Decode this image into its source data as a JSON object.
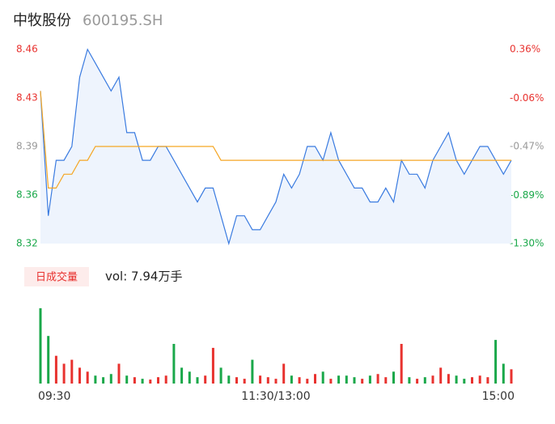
{
  "header": {
    "name": "中牧股份",
    "code": "600195.SH"
  },
  "chart_data": [
    {
      "type": "line",
      "xlim": [
        0,
        240
      ],
      "x": [
        0,
        4,
        8,
        12,
        16,
        20,
        24,
        28,
        32,
        36,
        40,
        44,
        48,
        52,
        56,
        60,
        64,
        68,
        72,
        76,
        80,
        84,
        88,
        92,
        96,
        100,
        104,
        108,
        112,
        116,
        120,
        124,
        128,
        132,
        136,
        140,
        144,
        148,
        152,
        156,
        160,
        164,
        168,
        172,
        176,
        180,
        184,
        188,
        192,
        196,
        200,
        204,
        208,
        212,
        216,
        220,
        224,
        228,
        232,
        236,
        240
      ],
      "xticks": [
        {
          "value": 0,
          "label": "09:30"
        },
        {
          "value": 120,
          "label": "11:30/13:00"
        },
        {
          "value": 240,
          "label": "15:00"
        }
      ],
      "ylim": [
        8.32,
        8.46
      ],
      "yticks": [
        {
          "value": 8.46,
          "label": "8.46"
        },
        {
          "value": 8.425,
          "label": "8.43"
        },
        {
          "value": 8.39,
          "label": "8.39"
        },
        {
          "value": 8.355,
          "label": "8.36"
        },
        {
          "value": 8.32,
          "label": "8.32"
        }
      ],
      "y2lim": [
        -1.3,
        0.36
      ],
      "y2ticks": [
        {
          "value": 0.36,
          "label": "0.36%"
        },
        {
          "value": -0.06,
          "label": "-0.06%"
        },
        {
          "value": -0.47,
          "label": "-0.47%"
        },
        {
          "value": -0.89,
          "label": "-0.89%"
        },
        {
          "value": -1.3,
          "label": "-1.30%"
        }
      ],
      "tick_colors": [
        "#e8322f",
        "#e8322f",
        "#999999",
        "#1aa84a",
        "#1aa84a"
      ],
      "series": [
        {
          "name": "price",
          "color": "#3a7be0",
          "area": "#eef4fd",
          "values": [
            8.43,
            8.34,
            8.38,
            8.38,
            8.39,
            8.44,
            8.46,
            8.45,
            8.44,
            8.43,
            8.44,
            8.4,
            8.4,
            8.38,
            8.38,
            8.39,
            8.39,
            8.38,
            8.37,
            8.36,
            8.35,
            8.36,
            8.36,
            8.34,
            8.32,
            8.34,
            8.34,
            8.33,
            8.33,
            8.34,
            8.35,
            8.37,
            8.36,
            8.37,
            8.39,
            8.39,
            8.38,
            8.4,
            8.38,
            8.37,
            8.36,
            8.36,
            8.35,
            8.35,
            8.36,
            8.35,
            8.38,
            8.37,
            8.37,
            8.36,
            8.38,
            8.39,
            8.4,
            8.38,
            8.37,
            8.38,
            8.39,
            8.39,
            8.38,
            8.37,
            8.38
          ]
        },
        {
          "name": "average",
          "color": "#f5a623",
          "values": [
            8.43,
            8.36,
            8.36,
            8.37,
            8.37,
            8.38,
            8.38,
            8.39,
            8.39,
            8.39,
            8.39,
            8.39,
            8.39,
            8.39,
            8.39,
            8.39,
            8.39,
            8.39,
            8.39,
            8.39,
            8.39,
            8.39,
            8.39,
            8.38,
            8.38,
            8.38,
            8.38,
            8.38,
            8.38,
            8.38,
            8.38,
            8.38,
            8.38,
            8.38,
            8.38,
            8.38,
            8.38,
            8.38,
            8.38,
            8.38,
            8.38,
            8.38,
            8.38,
            8.38,
            8.38,
            8.38,
            8.38,
            8.38,
            8.38,
            8.38,
            8.38,
            8.38,
            8.38,
            8.38,
            8.38,
            8.38,
            8.38,
            8.38,
            8.38,
            8.38,
            8.38
          ]
        }
      ]
    },
    {
      "type": "bar",
      "tag": "日成交量",
      "volume_label": "vol: 7.94万手",
      "ylim": [
        0,
        100
      ],
      "up_color": "#e8322f",
      "down_color": "#1aa84a",
      "values": [
        95,
        60,
        35,
        25,
        30,
        20,
        15,
        10,
        8,
        12,
        25,
        10,
        8,
        6,
        5,
        8,
        10,
        50,
        20,
        15,
        8,
        10,
        45,
        20,
        10,
        8,
        6,
        30,
        10,
        8,
        6,
        25,
        10,
        8,
        6,
        12,
        15,
        6,
        10,
        10,
        8,
        6,
        10,
        12,
        8,
        15,
        50,
        8,
        6,
        8,
        10,
        20,
        12,
        10,
        6,
        8,
        10,
        8,
        55,
        25,
        18
      ]
    }
  ]
}
